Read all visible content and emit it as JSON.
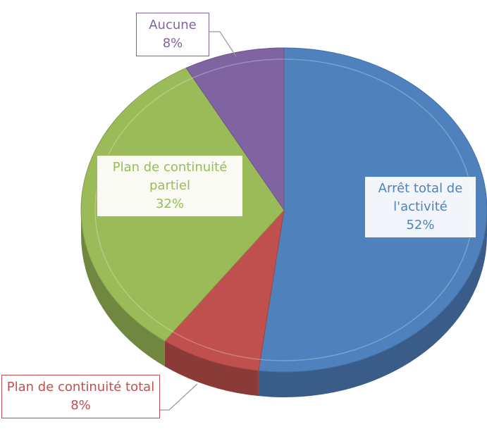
{
  "chart_data": {
    "type": "pie3d",
    "categories": [
      "Arrêt total de l'activité",
      "Plan de continuité total",
      "Plan de continuité partiel",
      "Aucune"
    ],
    "values": [
      52,
      8,
      32,
      8
    ],
    "value_labels": [
      "52%",
      "8%",
      "32%",
      "8%"
    ],
    "colors": [
      "#4f81bd",
      "#c0504d",
      "#9bbb59",
      "#8064a2"
    ]
  }
}
